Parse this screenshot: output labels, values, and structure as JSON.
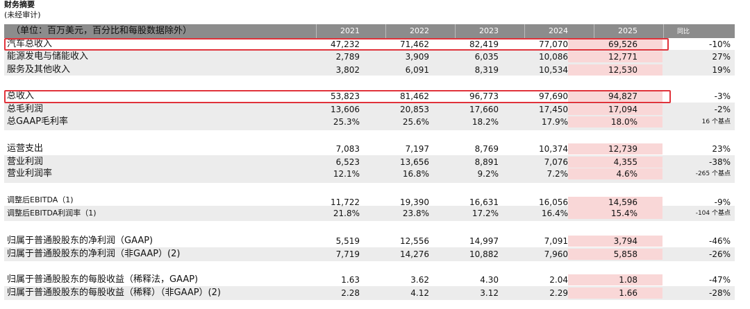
{
  "page": {
    "title": "财务摘要",
    "subtitle": "(未经审计)"
  },
  "header": {
    "unit_label": "（单位：百万美元，百分比和每股数据除外）",
    "years": [
      "2021",
      "2022",
      "2023",
      "2024",
      "2025"
    ],
    "yoy_label": "同比"
  },
  "rows": [
    {
      "label": "汽车总收入",
      "values": [
        "47,232",
        "71,462",
        "82,419",
        "77,070",
        "69,526"
      ],
      "yoy": "-10%"
    },
    {
      "label": "能源发电与储能收入",
      "values": [
        "2,789",
        "3,909",
        "6,035",
        "10,086",
        "12,771"
      ],
      "yoy": "27%"
    },
    {
      "label": "服务及其他收入",
      "values": [
        "3,802",
        "6,091",
        "8,319",
        "10,534",
        "12,530"
      ],
      "yoy": "19%"
    },
    {
      "label": "总收入",
      "values": [
        "53,823",
        "81,462",
        "96,773",
        "97,690",
        "94,827"
      ],
      "yoy": "-3%"
    },
    {
      "label": "总毛利润",
      "values": [
        "13,606",
        "20,853",
        "17,660",
        "17,450",
        "17,094"
      ],
      "yoy": "-2%"
    },
    {
      "label": "总GAAP毛利率",
      "values": [
        "25.3%",
        "25.6%",
        "18.2%",
        "17.9%",
        "18.0%"
      ],
      "yoy": "16 个基点"
    },
    {
      "label": "运营支出",
      "values": [
        "7,083",
        "7,197",
        "8,769",
        "10,374",
        "12,739"
      ],
      "yoy": "23%"
    },
    {
      "label": "营业利润",
      "values": [
        "6,523",
        "13,656",
        "8,891",
        "7,076",
        "4,355"
      ],
      "yoy": "-38%"
    },
    {
      "label": "营业利润率",
      "values": [
        "12.1%",
        "16.8%",
        "9.2%",
        "7.2%",
        "4.6%"
      ],
      "yoy": "-265 个基点"
    },
    {
      "label": "调整后EBITDA（1)",
      "values": [
        "11,722",
        "19,390",
        "16,631",
        "16,056",
        "14,596"
      ],
      "yoy": "-9%"
    },
    {
      "label": "调整后EBITDA利润率（1)",
      "values": [
        "21.8%",
        "23.8%",
        "17.2%",
        "16.4%",
        "15.4%"
      ],
      "yoy": "-104 个基点"
    },
    {
      "label": "归属于普通股股东的净利润（GAAP)",
      "values": [
        "5,519",
        "12,556",
        "14,997",
        "7,091",
        "3,794"
      ],
      "yoy": "-46%"
    },
    {
      "label": "归属于普通股股东的净利润（非GAAP）(2)",
      "values": [
        "7,719",
        "14,276",
        "10,882",
        "7,960",
        "5,858"
      ],
      "yoy": "-26%"
    },
    {
      "label": "归属于普通股股东的每股收益（稀释法，GAAP)",
      "values": [
        "1.63",
        "3.62",
        "4.30",
        "2.04",
        "1.08"
      ],
      "yoy": "-47%"
    },
    {
      "label": "归属于普通股股东的每股收益（稀释）（非GAAP）(2)",
      "values": [
        "2.28",
        "4.12",
        "3.12",
        "2.29",
        "1.66"
      ],
      "yoy": "-28%"
    }
  ],
  "colors": {
    "header_bg": "#8c8c8c",
    "highlight_col_bg": "#f9d7d7",
    "highlight_box": "#e0323a",
    "shade_bg": "#ececec"
  }
}
